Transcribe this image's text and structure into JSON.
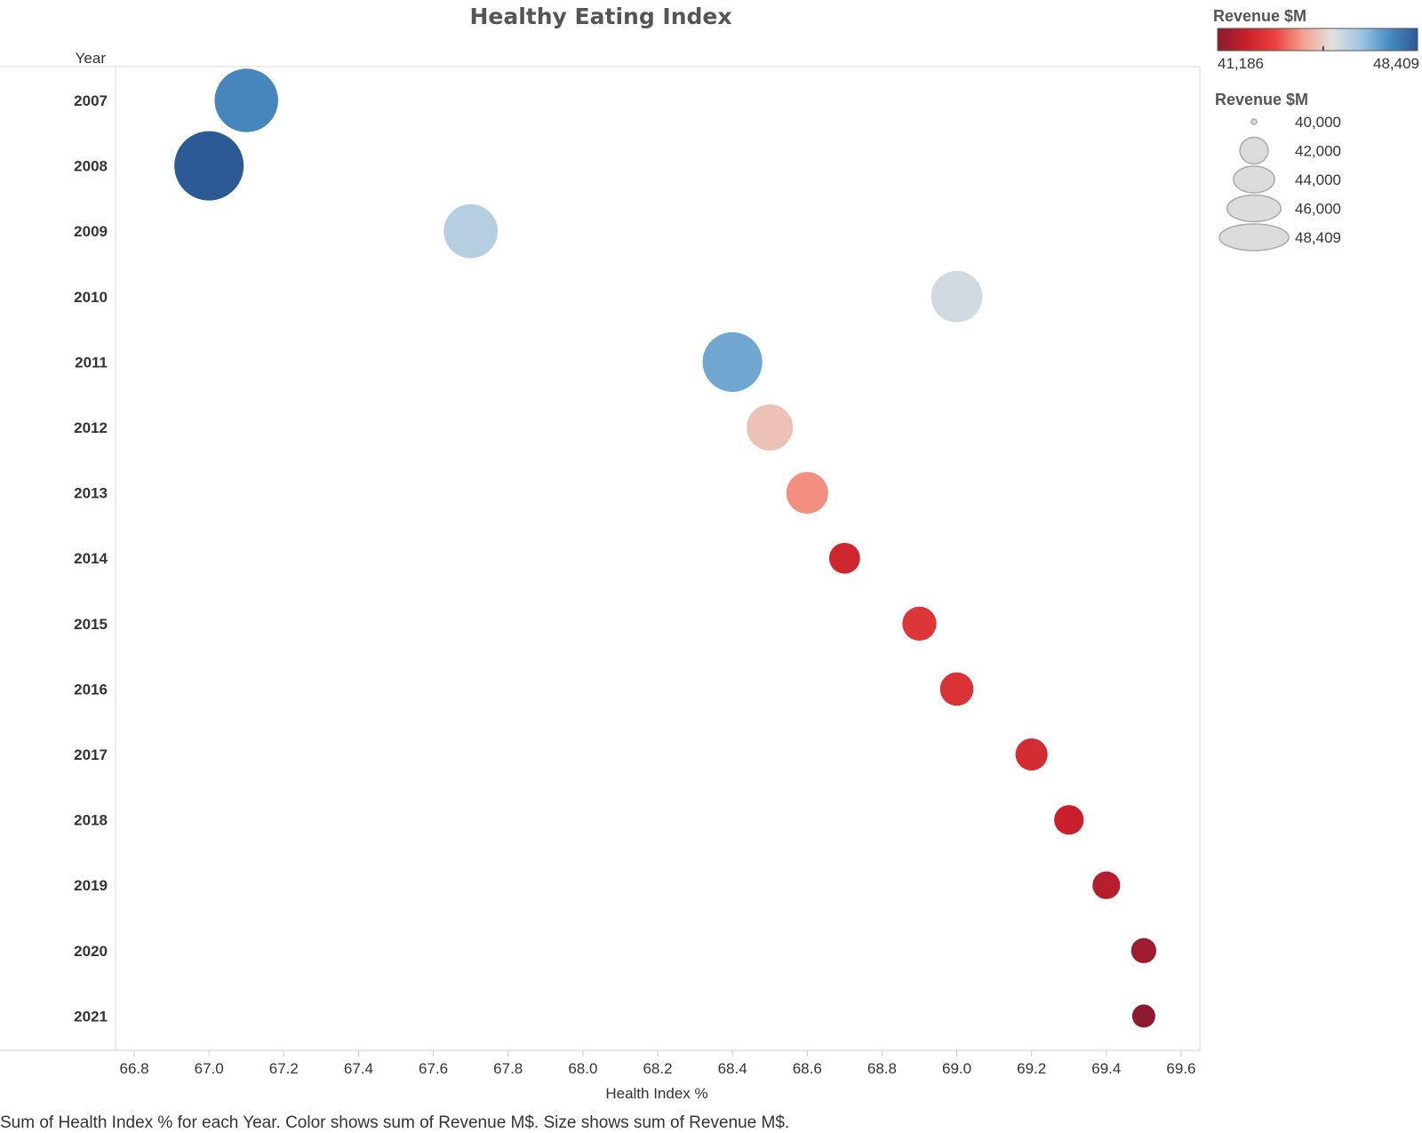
{
  "chart_data": {
    "type": "scatter",
    "title": "Healthy Eating Index",
    "xlabel": "Health Index %",
    "ylabel": "Year",
    "xlim": [
      66.75,
      69.65
    ],
    "x_ticks": [
      "66.8",
      "67.0",
      "67.2",
      "67.4",
      "67.6",
      "67.8",
      "68.0",
      "68.2",
      "68.4",
      "68.6",
      "68.8",
      "69.0",
      "69.2",
      "69.4",
      "69.6"
    ],
    "grid": false,
    "points": [
      {
        "year": "2007",
        "health_index": 67.1,
        "revenue": 47500
      },
      {
        "year": "2008",
        "health_index": 67.0,
        "revenue": 48409
      },
      {
        "year": "2009",
        "health_index": 67.7,
        "revenue": 46000
      },
      {
        "year": "2010",
        "health_index": 69.0,
        "revenue": 45600
      },
      {
        "year": "2011",
        "health_index": 68.4,
        "revenue": 46900
      },
      {
        "year": "2012",
        "health_index": 68.5,
        "revenue": 44800
      },
      {
        "year": "2013",
        "health_index": 68.6,
        "revenue": 44100
      },
      {
        "year": "2014",
        "health_index": 68.7,
        "revenue": 42400
      },
      {
        "year": "2015",
        "health_index": 68.9,
        "revenue": 42900
      },
      {
        "year": "2016",
        "health_index": 69.0,
        "revenue": 42800
      },
      {
        "year": "2017",
        "health_index": 69.2,
        "revenue": 42600
      },
      {
        "year": "2018",
        "health_index": 69.3,
        "revenue": 42200
      },
      {
        "year": "2019",
        "health_index": 69.4,
        "revenue": 41900
      },
      {
        "year": "2020",
        "health_index": 69.5,
        "revenue": 41500
      },
      {
        "year": "2021",
        "health_index": 69.5,
        "revenue": 41186
      }
    ],
    "color_legend": {
      "title": "Revenue $M",
      "min_label": "41,186",
      "max_label": "48,409",
      "min": 41186,
      "max": 48409,
      "center": 45000,
      "stops": [
        "#8b1a2e",
        "#c9202c",
        "#e8413e",
        "#f4a08e",
        "#e4e1df",
        "#9dc6e2",
        "#4a8cc2",
        "#2c5a94"
      ]
    },
    "size_legend": {
      "title": "Revenue $M",
      "entries": [
        {
          "label": "40,000",
          "value": 40000
        },
        {
          "label": "42,000",
          "value": 42000
        },
        {
          "label": "44,000",
          "value": 44000
        },
        {
          "label": "46,000",
          "value": 46000
        },
        {
          "label": "48,409",
          "value": 48409
        }
      ]
    },
    "caption": "Sum of Health Index % for each Year.  Color shows sum of Revenue M$.  Size shows sum of Revenue M$."
  }
}
